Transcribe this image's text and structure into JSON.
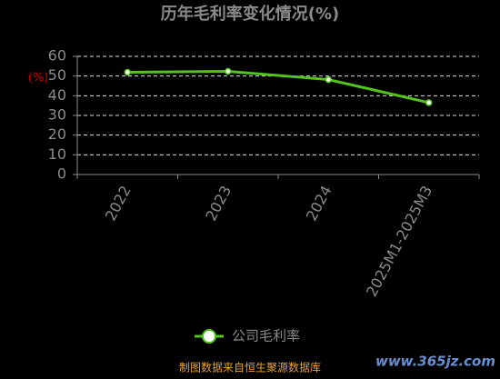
{
  "chart_data": {
    "type": "line",
    "title": "历年毛利率变化情况(%)",
    "y_label": "(%)",
    "categories": [
      "2022",
      "2023",
      "2024",
      "2025M1-2025M3"
    ],
    "series": [
      {
        "name": "公司毛利率",
        "color": "#52c41a",
        "values": [
          51.9,
          52.4,
          48.2,
          36.5
        ]
      }
    ],
    "ylim": [
      0,
      60
    ],
    "yticks": [
      0,
      10,
      20,
      30,
      40,
      50,
      60
    ],
    "grid": true,
    "source": "制图数据来自恒生聚源数据库",
    "watermark": "www.365jz.com"
  }
}
